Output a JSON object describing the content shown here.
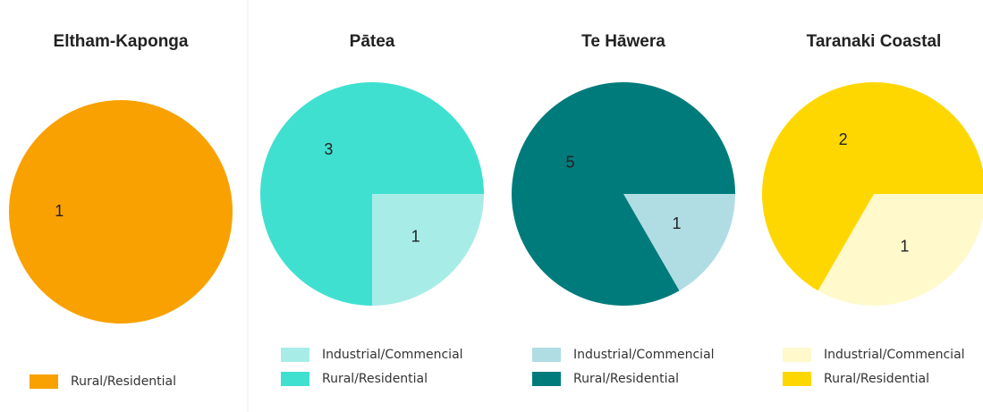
{
  "chart_data": [
    {
      "type": "pie",
      "title": "Eltham-Kaponga",
      "categories": [
        "Rural/Residential"
      ],
      "values": [
        1
      ],
      "colors": [
        "#f9a100"
      ]
    },
    {
      "type": "pie",
      "title": "Pātea",
      "categories": [
        "Industrial/Commencial",
        "Rural/Residential"
      ],
      "values": [
        1,
        3
      ],
      "colors": [
        "#a8ece8",
        "#40e0d0"
      ]
    },
    {
      "type": "pie",
      "title": "Te Hāwera",
      "categories": [
        "Industrial/Commencial",
        "Rural/Residential"
      ],
      "values": [
        1,
        5
      ],
      "colors": [
        "#b0dde4",
        "#007b7b"
      ]
    },
    {
      "type": "pie",
      "title": "Taranaki Coastal",
      "categories": [
        "Industrial/Commencial",
        "Rural/Residential"
      ],
      "values": [
        1,
        2
      ],
      "colors": [
        "#fff9cc",
        "#ffd700"
      ]
    }
  ]
}
